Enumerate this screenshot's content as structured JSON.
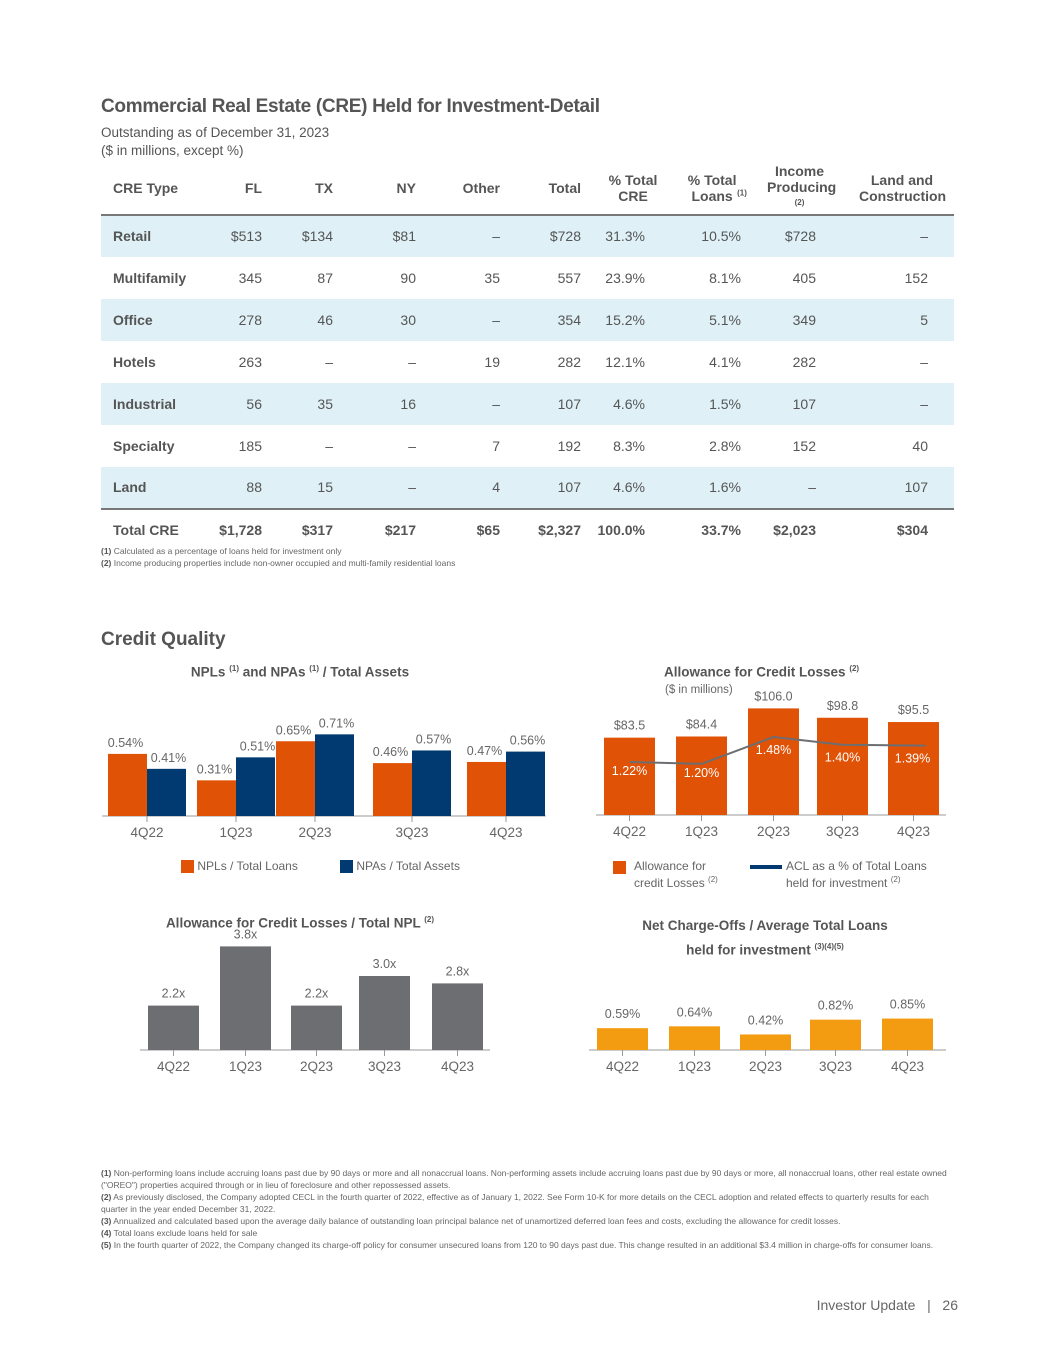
{
  "title": "Commercial Real Estate (CRE) Held for Investment-Detail",
  "subtitle1": "Outstanding as of December 31, 2023",
  "subtitle2": "($ in millions, except %)",
  "table": {
    "headers": [
      "CRE Type",
      "FL",
      "TX",
      "NY",
      "Other",
      "Total",
      "% Total CRE",
      "% Total Loans",
      "Income Producing",
      "Land and Construction"
    ],
    "header_notes": {
      "loans": "(1)",
      "income": "(2)"
    },
    "rows": [
      [
        "Retail",
        "$513",
        "$134",
        "$81",
        "–",
        "$728",
        "31.3%",
        "10.5%",
        "$728",
        "–"
      ],
      [
        "Multifamily",
        "345",
        "87",
        "90",
        "35",
        "557",
        "23.9%",
        "8.1%",
        "405",
        "152"
      ],
      [
        "Office",
        "278",
        "46",
        "30",
        "–",
        "354",
        "15.2%",
        "5.1%",
        "349",
        "5"
      ],
      [
        "Hotels",
        "263",
        "–",
        "–",
        "19",
        "282",
        "12.1%",
        "4.1%",
        "282",
        "–"
      ],
      [
        "Industrial",
        "56",
        "35",
        "16",
        "–",
        "107",
        "4.6%",
        "1.5%",
        "107",
        "–"
      ],
      [
        "Specialty",
        "185",
        "–",
        "–",
        "7",
        "192",
        "8.3%",
        "2.8%",
        "152",
        "40"
      ],
      [
        "Land",
        "88",
        "15",
        "–",
        "4",
        "107",
        "4.6%",
        "1.6%",
        "–",
        "107"
      ],
      [
        "Total CRE",
        "$1,728",
        "$317",
        "$217",
        "$65",
        "$2,327",
        "100.0%",
        "33.7%",
        "$2,023",
        "$304"
      ]
    ]
  },
  "table_notes": [
    {
      "n": "(1)",
      "t": " Calculated as a percentage of loans held for investment only"
    },
    {
      "n": "(2)",
      "t": " Income producing properties include non-owner occupied and multi-family residential loans"
    }
  ],
  "section2": "Credit Quality",
  "colors": {
    "orange": "#e05206",
    "navy": "#003a70",
    "gray": "#6d6e71",
    "amber": "#f39c12",
    "line": "#6d6e71",
    "band": "#dff1f7"
  },
  "chart_data": [
    {
      "type": "bar",
      "title": "NPLs (1) and NPAs (1) /  Total Assets",
      "categories": [
        "4Q22",
        "1Q23",
        "2Q23",
        "3Q23",
        "4Q23"
      ],
      "series": [
        {
          "name": "NPLs / Total Loans",
          "values": [
            0.54,
            0.31,
            0.65,
            0.46,
            0.47
          ],
          "labels": [
            "0.54%",
            "0.31%",
            "0.65%",
            "0.46%",
            "0.47%"
          ]
        },
        {
          "name": "NPAs / Total Assets",
          "values": [
            0.41,
            0.51,
            0.71,
            0.57,
            0.56
          ],
          "labels": [
            "0.41%",
            "0.51%",
            "0.71%",
            "0.57%",
            "0.56%"
          ]
        }
      ]
    },
    {
      "type": "bar",
      "title": "Allowance for Credit Losses (2)",
      "subtitle": "($ in millions)",
      "categories": [
        "4Q22",
        "1Q23",
        "2Q23",
        "3Q23",
        "4Q23"
      ],
      "series": [
        {
          "name": "Allowance for credit Losses (2)",
          "values": [
            83.5,
            84.4,
            106.0,
            98.8,
            95.5
          ],
          "labels": [
            "$83.5",
            "$84.4",
            "$106.0",
            "$98.8",
            "$95.5"
          ]
        },
        {
          "name": "ACL as a % of Total Loans held for investment (2)",
          "type": "line",
          "values": [
            1.22,
            1.2,
            1.48,
            1.4,
            1.39
          ],
          "labels": [
            "1.22%",
            "1.20%",
            "1.48%",
            "1.40%",
            "1.39%"
          ]
        }
      ]
    },
    {
      "type": "bar",
      "title": "Allowance for Credit Losses / Total NPL (2)",
      "categories": [
        "4Q22",
        "1Q23",
        "2Q23",
        "3Q23",
        "4Q23"
      ],
      "series": [
        {
          "values": [
            2.2,
            3.8,
            2.2,
            3.0,
            2.8
          ],
          "labels": [
            "2.2x",
            "3.8x",
            "2.2x",
            "3.0x",
            "2.8x"
          ]
        }
      ]
    },
    {
      "type": "bar",
      "title": "Net Charge-Offs / Average Total Loans held for investment (3)(4)(5)",
      "categories": [
        "4Q22",
        "1Q23",
        "2Q23",
        "3Q23",
        "4Q23"
      ],
      "series": [
        {
          "values": [
            0.59,
            0.64,
            0.42,
            0.82,
            0.85
          ],
          "labels": [
            "0.59%",
            "0.64%",
            "0.42%",
            "0.82%",
            "0.85%"
          ]
        }
      ]
    }
  ],
  "chart_titles": {
    "npl_a": "NPLs",
    "npl_n1": "(1)",
    "npl_b": " and NPAs",
    "npl_n2": "(1)",
    "npl_c": " /  Total Assets",
    "acl": "Allowance for Credit Losses",
    "acl_n": "(2)",
    "acl_sub": "($ in millions)",
    "ratio": "Allowance for Credit Losses / Total NPL",
    "ratio_n": "(2)",
    "nco1": "Net Charge-Offs / Average Total Loans",
    "nco2": "held for investment",
    "nco_n": "(3)(4)(5)"
  },
  "legends": {
    "npl1": "NPLs / Total Loans",
    "npl2": "NPAs / Total Assets",
    "acl1a": "Allowance for",
    "acl1b": "credit Losses",
    "acl1n": "(2)",
    "acl2a": "ACL as a % of Total Loans",
    "acl2b": "held for investment",
    "acl2n": "(2)"
  },
  "footnotes": [
    {
      "n": "(1)",
      "t": " Non-performing loans include accruing loans past due by 90 days or more and all nonaccrual loans. Non-performing assets include accruing loans past due by 90 days or more, all nonaccrual loans, other real estate owned (\"OREO\") properties acquired through or in lieu of foreclosure and other repossessed assets."
    },
    {
      "n": "(2)",
      "t": " As previously disclosed, the Company adopted CECL in the fourth quarter of 2022, effective as of January 1, 2022. See Form 10-K for more details on the CECL adoption and related effects to quarterly results for each quarter in the year ended December 31, 2022."
    },
    {
      "n": "(3)",
      "t": " Annualized and calculated based upon the average daily balance of outstanding loan principal balance net of unamortized deferred loan fees and costs, excluding the allowance for credit losses."
    },
    {
      "n": "(4)",
      "t": " Total loans exclude loans held for sale"
    },
    {
      "n": "(5)",
      "t": " In the fourth quarter of 2022, the Company changed its charge-off policy for consumer unsecured loans from 120 to 90 days past due. This change resulted in an additional $3.4 million in charge-offs for consumer loans."
    }
  ],
  "footer": {
    "label": "Investor Update",
    "sep": "|",
    "page": "26"
  }
}
